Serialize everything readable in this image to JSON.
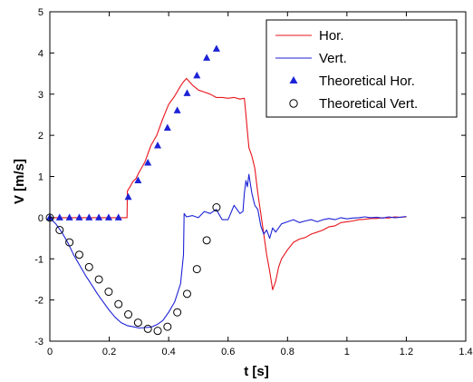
{
  "chart_data": {
    "type": "line",
    "xlabel": "t  [s]",
    "ylabel": "V  [m/s]",
    "xlim": [
      0,
      1.4
    ],
    "ylim": [
      -3,
      5
    ],
    "xticks": [
      "0",
      "0.2",
      "0.4",
      "0.6",
      "0.8",
      "1",
      "1.2",
      "1.4"
    ],
    "yticks": [
      "-3",
      "-2",
      "-1",
      "0",
      "1",
      "2",
      "3",
      "4",
      "5"
    ],
    "grid": false,
    "legend_position": "top-right",
    "series": [
      {
        "name": "Hor.",
        "style": "line",
        "color": "#e8141c",
        "x": [
          0,
          0.26,
          0.261,
          0.27,
          0.28,
          0.29,
          0.3,
          0.32,
          0.34,
          0.36,
          0.38,
          0.4,
          0.42,
          0.44,
          0.45,
          0.46,
          0.47,
          0.48,
          0.5,
          0.52,
          0.54,
          0.56,
          0.58,
          0.6,
          0.62,
          0.64,
          0.655,
          0.66,
          0.665,
          0.67,
          0.68,
          0.69,
          0.7,
          0.71,
          0.72,
          0.73,
          0.74,
          0.75,
          0.76,
          0.77,
          0.78,
          0.8,
          0.82,
          0.84,
          0.86,
          0.88,
          0.9,
          0.92,
          0.94,
          0.96,
          0.98,
          1.0,
          1.02,
          1.04,
          1.06,
          1.08,
          1.1,
          1.12,
          1.14,
          1.16,
          1.18,
          1.2
        ],
        "y": [
          0,
          0,
          0.65,
          0.75,
          0.88,
          0.95,
          1.1,
          1.35,
          1.75,
          2.0,
          2.4,
          2.75,
          2.95,
          3.2,
          3.3,
          3.38,
          3.3,
          3.22,
          3.1,
          3.05,
          3.0,
          2.92,
          2.92,
          2.9,
          2.92,
          2.88,
          2.9,
          2.5,
          2.1,
          1.7,
          1.5,
          1.2,
          0.6,
          0.1,
          -0.4,
          -0.9,
          -1.3,
          -1.75,
          -1.55,
          -1.2,
          -1.0,
          -0.78,
          -0.6,
          -0.52,
          -0.48,
          -0.4,
          -0.35,
          -0.3,
          -0.22,
          -0.2,
          -0.12,
          -0.1,
          -0.08,
          -0.05,
          -0.04,
          -0.02,
          -0.02,
          0.0,
          -0.01,
          0.02,
          0.01,
          0.02
        ]
      },
      {
        "name": "Vert.",
        "style": "line",
        "color": "#1c22d6",
        "x": [
          0,
          0.02,
          0.04,
          0.06,
          0.08,
          0.1,
          0.12,
          0.14,
          0.16,
          0.18,
          0.2,
          0.22,
          0.24,
          0.26,
          0.28,
          0.3,
          0.32,
          0.34,
          0.36,
          0.38,
          0.4,
          0.42,
          0.44,
          0.45,
          0.452,
          0.46,
          0.48,
          0.5,
          0.52,
          0.54,
          0.56,
          0.58,
          0.6,
          0.62,
          0.64,
          0.65,
          0.655,
          0.66,
          0.665,
          0.67,
          0.68,
          0.69,
          0.7,
          0.71,
          0.72,
          0.73,
          0.74,
          0.75,
          0.76,
          0.78,
          0.8,
          0.82,
          0.84,
          0.86,
          0.88,
          0.9,
          0.92,
          0.94,
          0.96,
          0.98,
          1.0,
          1.02,
          1.04,
          1.06,
          1.08,
          1.1,
          1.12,
          1.14,
          1.16,
          1.18,
          1.2
        ],
        "y": [
          0,
          -0.15,
          -0.35,
          -0.6,
          -0.9,
          -1.15,
          -1.4,
          -1.62,
          -1.85,
          -2.05,
          -2.25,
          -2.42,
          -2.55,
          -2.62,
          -2.65,
          -2.68,
          -2.67,
          -2.66,
          -2.6,
          -2.5,
          -2.3,
          -2.05,
          -1.6,
          -0.9,
          0.1,
          0.02,
          0.05,
          0.0,
          0.15,
          0.1,
          0.2,
          -0.05,
          -0.05,
          0.3,
          0.1,
          0.15,
          0.6,
          0.9,
          0.75,
          1.05,
          0.6,
          0.3,
          0.2,
          -0.2,
          -0.4,
          -0.3,
          -0.5,
          -0.25,
          -0.35,
          -0.15,
          -0.1,
          -0.05,
          -0.12,
          -0.08,
          -0.05,
          -0.1,
          -0.05,
          -0.02,
          -0.05,
          0.0,
          -0.03,
          -0.01,
          0.0,
          0.02,
          0.0,
          0.01,
          -0.01,
          0.02,
          0.0,
          0.01,
          0.03
        ]
      },
      {
        "name": "Theoretical Hor.",
        "style": "triangle-markers",
        "color": "#1c22d6",
        "x": [
          0,
          0.033,
          0.066,
          0.099,
          0.132,
          0.165,
          0.198,
          0.231,
          0.264,
          0.297,
          0.33,
          0.363,
          0.396,
          0.429,
          0.462,
          0.495,
          0.528,
          0.561
        ],
        "y": [
          0,
          0,
          0,
          0,
          0,
          0,
          0,
          0,
          0.5,
          0.9,
          1.33,
          1.75,
          2.18,
          2.6,
          3.02,
          3.45,
          3.88,
          4.1
        ]
      },
      {
        "name": "Theoretical Vert.",
        "style": "circle-markers",
        "color": "#000000",
        "x": [
          0,
          0.033,
          0.066,
          0.099,
          0.132,
          0.165,
          0.198,
          0.231,
          0.264,
          0.297,
          0.33,
          0.363,
          0.396,
          0.429,
          0.462,
          0.495,
          0.528,
          0.561
        ],
        "y": [
          0,
          -0.3,
          -0.6,
          -0.9,
          -1.2,
          -1.5,
          -1.8,
          -2.1,
          -2.35,
          -2.55,
          -2.7,
          -2.75,
          -2.65,
          -2.3,
          -1.85,
          -1.25,
          -0.55,
          0.25
        ]
      }
    ]
  }
}
